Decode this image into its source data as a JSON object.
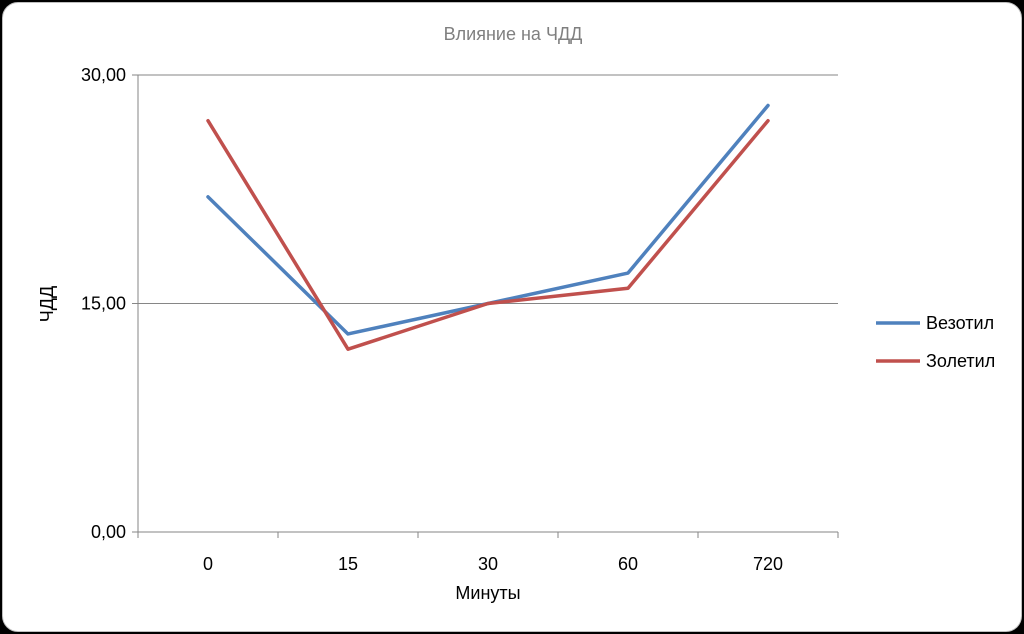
{
  "chart_data": {
    "type": "line",
    "title": "Влияние на ЧДД",
    "xlabel": "Минуты",
    "ylabel": "ЧДД",
    "categories": [
      "0",
      "15",
      "30",
      "60",
      "720"
    ],
    "ylim": [
      0,
      30
    ],
    "y_ticks": [
      "0,00",
      "15,00",
      "30,00"
    ],
    "grid": "horizontal",
    "legend_position": "right",
    "series": [
      {
        "name": "Везотил",
        "color": "#4f81bd",
        "values": [
          22,
          13,
          15,
          17,
          28
        ]
      },
      {
        "name": "Золетил",
        "color": "#c0504d",
        "values": [
          27,
          12,
          15,
          16,
          27
        ]
      }
    ]
  }
}
